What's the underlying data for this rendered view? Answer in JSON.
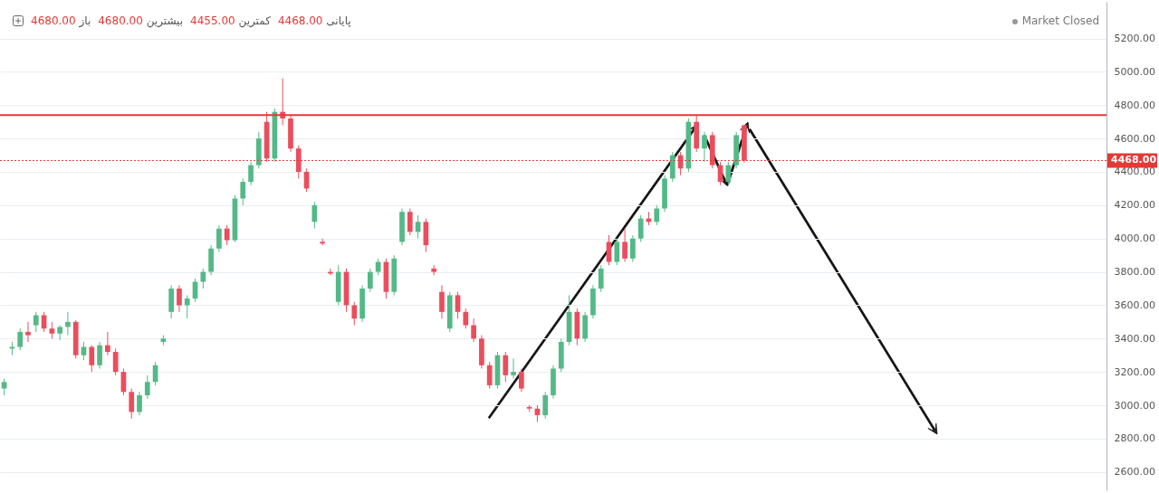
{
  "chart_data": {
    "type": "candlestick",
    "annotations": [
      "باز 4680.00",
      "بیشترین 4680.00",
      "کمترین 4455.00",
      "پایانی 4468.00",
      "Market Closed"
    ],
    "categories": [
      null,
      null,
      null,
      null,
      null,
      null,
      null,
      null,
      null,
      null,
      null,
      null,
      null,
      null,
      null,
      null,
      null,
      null,
      null,
      null,
      null,
      null,
      null,
      null,
      null,
      null,
      null,
      null,
      null,
      null,
      null,
      null,
      null,
      null,
      null,
      null,
      null,
      null,
      null,
      null,
      null,
      null,
      null,
      null,
      null,
      null,
      null,
      null,
      null,
      null,
      null,
      null,
      null,
      null,
      null,
      null,
      null,
      null,
      null,
      null,
      null,
      null,
      null,
      null,
      null,
      null,
      null,
      null,
      null,
      null,
      null,
      null,
      null,
      null,
      null,
      null,
      null,
      null,
      null,
      null,
      null,
      null,
      null,
      null,
      null,
      null,
      null,
      null,
      null,
      null,
      null,
      null,
      null,
      null,
      null,
      null,
      null,
      null,
      null,
      null,
      null,
      null,
      null,
      null,
      null,
      null,
      null,
      null,
      null,
      null,
      null,
      null,
      null,
      null,
      null,
      null,
      null,
      null,
      null,
      null,
      null,
      null,
      null,
      null,
      null,
      null,
      null,
      null,
      null,
      null,
      null,
      null,
      null,
      null,
      null,
      null,
      null,
      null,
      null
    ],
    "ohlc": [
      [
        3100,
        3160,
        3060,
        3140
      ],
      [
        3340,
        3380,
        3300,
        3350
      ],
      [
        3350,
        3460,
        3330,
        3440
      ],
      [
        3440,
        3500,
        3380,
        3420
      ],
      [
        3480,
        3560,
        3440,
        3540
      ],
      [
        3540,
        3560,
        3440,
        3460
      ],
      [
        3460,
        3500,
        3400,
        3430
      ],
      [
        3430,
        3480,
        3390,
        3470
      ],
      [
        3470,
        3560,
        3420,
        3500
      ],
      [
        3500,
        3510,
        3280,
        3300
      ],
      [
        3300,
        3380,
        3270,
        3350
      ],
      [
        3350,
        3360,
        3200,
        3240
      ],
      [
        3240,
        3380,
        3220,
        3360
      ],
      [
        3360,
        3440,
        3300,
        3320
      ],
      [
        3320,
        3340,
        3180,
        3200
      ],
      [
        3200,
        3220,
        3060,
        3080
      ],
      [
        3080,
        3100,
        2920,
        2960
      ],
      [
        2960,
        3080,
        2940,
        3060
      ],
      [
        3060,
        3180,
        3040,
        3140
      ],
      [
        3140,
        3260,
        3120,
        3240
      ],
      [
        3380,
        3420,
        3360,
        3400
      ],
      [
        3560,
        3720,
        3520,
        3700
      ],
      [
        3700,
        3720,
        3560,
        3600
      ],
      [
        3600,
        3660,
        3520,
        3640
      ],
      [
        3640,
        3760,
        3620,
        3740
      ],
      [
        3740,
        3820,
        3700,
        3800
      ],
      [
        3800,
        3960,
        3780,
        3940
      ],
      [
        3940,
        4080,
        3920,
        4060
      ],
      [
        4060,
        4080,
        3960,
        3990
      ],
      [
        3990,
        4260,
        3980,
        4240
      ],
      [
        4240,
        4360,
        4200,
        4340
      ],
      [
        4340,
        4460,
        4320,
        4440
      ],
      [
        4440,
        4640,
        4420,
        4600
      ],
      [
        4700,
        4760,
        4460,
        4480
      ],
      [
        4480,
        4780,
        4460,
        4760
      ],
      [
        4760,
        4960,
        4680,
        4720
      ],
      [
        4720,
        4740,
        4520,
        4540
      ],
      [
        4540,
        4560,
        4360,
        4400
      ],
      [
        4400,
        4420,
        4280,
        4300
      ],
      [
        4100,
        4220,
        4060,
        4200
      ],
      [
        3980,
        4000,
        3960,
        3970
      ],
      [
        3800,
        3820,
        3780,
        3790
      ],
      [
        3620,
        3840,
        3600,
        3800
      ],
      [
        3800,
        3820,
        3560,
        3600
      ],
      [
        3600,
        3620,
        3480,
        3520
      ],
      [
        3520,
        3720,
        3500,
        3700
      ],
      [
        3700,
        3820,
        3680,
        3800
      ],
      [
        3800,
        3880,
        3780,
        3860
      ],
      [
        3860,
        3880,
        3640,
        3680
      ],
      [
        3680,
        3900,
        3660,
        3880
      ],
      [
        3980,
        4180,
        3960,
        4160
      ],
      [
        4160,
        4180,
        4020,
        4040
      ],
      [
        4040,
        4140,
        4000,
        4100
      ],
      [
        4100,
        4120,
        3920,
        3960
      ],
      [
        3820,
        3840,
        3780,
        3800
      ],
      [
        3680,
        3720,
        3520,
        3560
      ],
      [
        3460,
        3680,
        3440,
        3660
      ],
      [
        3660,
        3680,
        3520,
        3560
      ],
      [
        3560,
        3580,
        3460,
        3480
      ],
      [
        3480,
        3520,
        3380,
        3400
      ],
      [
        3400,
        3420,
        3220,
        3240
      ],
      [
        3240,
        3260,
        3100,
        3120
      ],
      [
        3120,
        3320,
        3100,
        3300
      ],
      [
        3300,
        3320,
        3140,
        3180
      ],
      [
        3180,
        3280,
        3160,
        3200
      ],
      [
        3200,
        3220,
        3080,
        3100
      ],
      [
        2990,
        3000,
        2960,
        2980
      ],
      [
        2980,
        3000,
        2900,
        2940
      ],
      [
        2940,
        3080,
        2920,
        3060
      ],
      [
        3060,
        3240,
        3040,
        3220
      ],
      [
        3220,
        3400,
        3200,
        3380
      ],
      [
        3380,
        3660,
        3360,
        3560
      ],
      [
        3560,
        3580,
        3360,
        3400
      ],
      [
        3400,
        3560,
        3380,
        3540
      ],
      [
        3540,
        3720,
        3520,
        3700
      ],
      [
        3700,
        3840,
        3680,
        3820
      ],
      [
        3980,
        4020,
        3840,
        3860
      ],
      [
        3860,
        4000,
        3840,
        3980
      ],
      [
        3980,
        4060,
        3860,
        3880
      ],
      [
        3880,
        4020,
        3860,
        4000
      ],
      [
        4000,
        4140,
        3980,
        4120
      ],
      [
        4120,
        4160,
        4080,
        4100
      ],
      [
        4100,
        4200,
        4080,
        4180
      ],
      [
        4180,
        4380,
        4160,
        4360
      ],
      [
        4360,
        4520,
        4340,
        4500
      ],
      [
        4500,
        4520,
        4380,
        4420
      ],
      [
        4420,
        4720,
        4400,
        4700
      ],
      [
        4700,
        4740,
        4520,
        4540
      ],
      [
        4540,
        4640,
        4460,
        4620
      ],
      [
        4620,
        4640,
        4420,
        4440
      ],
      [
        4440,
        4460,
        4320,
        4340
      ],
      [
        4340,
        4460,
        4320,
        4440
      ],
      [
        4440,
        4640,
        4420,
        4620
      ],
      [
        4680,
        4680,
        4455,
        4468
      ],
      null,
      null,
      null,
      null,
      null,
      null,
      null,
      null,
      null,
      null,
      null,
      null,
      null,
      null,
      null,
      null,
      null,
      null,
      null,
      null,
      null,
      null,
      null,
      null,
      null,
      null,
      null,
      null,
      null,
      null,
      null,
      null,
      null,
      null,
      null,
      null,
      null,
      null,
      null,
      null,
      null,
      null,
      null,
      null,
      null
    ],
    "colors": [
      "#53b987",
      "#53b987",
      "#53b987",
      "#eb4d5c",
      "#53b987",
      "#eb4d5c",
      "#eb4d5c",
      "#53b987",
      "#53b987",
      "#eb4d5c",
      "#53b987",
      "#eb4d5c",
      "#53b987",
      "#eb4d5c",
      "#eb4d5c",
      "#eb4d5c",
      "#eb4d5c",
      "#53b987",
      "#53b987",
      "#53b987",
      "#53b987",
      "#53b987",
      "#eb4d5c",
      "#53b987",
      "#53b987",
      "#53b987",
      "#53b987",
      "#53b987",
      "#eb4d5c",
      "#53b987",
      "#53b987",
      "#53b987",
      "#53b987",
      "#eb4d5c",
      "#53b987",
      "#eb4d5c",
      "#eb4d5c",
      "#eb4d5c",
      "#eb4d5c",
      "#53b987",
      "#eb4d5c",
      "#eb4d5c",
      "#53b987",
      "#eb4d5c",
      "#eb4d5c",
      "#53b987",
      "#53b987",
      "#53b987",
      "#eb4d5c",
      "#53b987",
      "#53b987",
      "#eb4d5c",
      "#53b987",
      "#eb4d5c",
      "#eb4d5c",
      "#eb4d5c",
      "#53b987",
      "#eb4d5c",
      "#eb4d5c",
      "#eb4d5c",
      "#eb4d5c",
      "#eb4d5c",
      "#53b987",
      "#eb4d5c",
      "#53b987",
      "#eb4d5c",
      "#eb4d5c",
      "#eb4d5c",
      "#53b987",
      "#53b987",
      "#53b987",
      "#53b987",
      "#eb4d5c",
      "#53b987",
      "#53b987",
      "#53b987",
      "#eb4d5c",
      "#53b987",
      "#eb4d5c",
      "#53b987",
      "#53b987",
      "#eb4d5c",
      "#53b987",
      "#53b987",
      "#53b987",
      "#eb4d5c",
      "#53b987",
      "#eb4d5c",
      "#53b987",
      "#eb4d5c",
      "#eb4d5c",
      "#53b987",
      "#53b987",
      "#eb4d5c",
      null,
      null,
      null,
      null,
      null,
      null,
      null,
      null,
      null,
      null,
      null,
      null,
      null,
      null,
      null,
      null,
      null,
      null,
      null,
      null,
      null,
      null,
      null,
      null,
      null,
      null,
      null,
      null,
      null,
      null,
      null,
      null,
      null,
      null,
      null,
      null,
      null,
      null,
      null,
      null,
      null,
      null,
      null,
      null,
      null
    ],
    "ylim": [
      2490,
      5420
    ],
    "yticks": [
      {
        "value": 2600,
        "label": "2600.00"
      },
      {
        "value": 2800,
        "label": "2800.00"
      },
      {
        "value": 3000,
        "label": "3000.00"
      },
      {
        "value": 3200,
        "label": "3200.00"
      },
      {
        "value": 3400,
        "label": "3400.00"
      },
      {
        "value": 3600,
        "label": "3600.00"
      },
      {
        "value": 3800,
        "label": "3800.00"
      },
      {
        "value": 4000,
        "label": "4000.00"
      },
      {
        "value": 4200,
        "label": "4200.00"
      },
      {
        "value": 4400,
        "label": "4400.00"
      },
      {
        "value": 4600,
        "label": "4600.00"
      },
      {
        "value": 4800,
        "label": "4800.00"
      },
      {
        "value": 5000,
        "label": "5000.00"
      },
      {
        "value": 5200,
        "label": "5200.00"
      }
    ],
    "tick_labels": "y",
    "grid": "y",
    "ref_lines": [
      {
        "axis": "y",
        "value": 4740,
        "label": null,
        "color": "#e53935",
        "line_style": "solid"
      },
      {
        "axis": "y",
        "value": 4468,
        "label": "4468.00",
        "color": "#e53935",
        "line_style": "dotted"
      }
    ]
  }
}
